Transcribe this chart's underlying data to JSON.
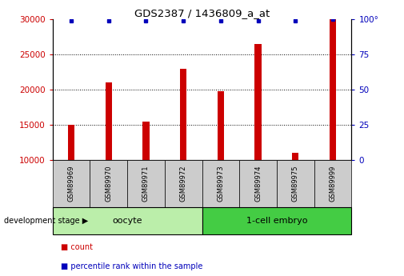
{
  "title": "GDS2387 / 1436809_a_at",
  "samples": [
    "GSM89969",
    "GSM89970",
    "GSM89971",
    "GSM89972",
    "GSM89973",
    "GSM89974",
    "GSM89975",
    "GSM89999"
  ],
  "counts": [
    15000,
    21000,
    15500,
    23000,
    19800,
    26500,
    11000,
    30000
  ],
  "percentiles": [
    99,
    99,
    99,
    99,
    99,
    99,
    99,
    100
  ],
  "oocyte_n": 4,
  "embryo_n": 4,
  "ylim_left": [
    10000,
    30000
  ],
  "ylim_right": [
    0,
    100
  ],
  "yticks_left": [
    10000,
    15000,
    20000,
    25000,
    30000
  ],
  "yticks_right": [
    0,
    25,
    50,
    75,
    100
  ],
  "bar_color": "#cc0000",
  "dot_color": "#0000bb",
  "oocyte_color": "#bbeeaa",
  "embryo_color": "#44cc44",
  "label_bg_color": "#cccccc",
  "legend_count_color": "#cc0000",
  "legend_pct_color": "#0000bb",
  "grid_color": "black"
}
